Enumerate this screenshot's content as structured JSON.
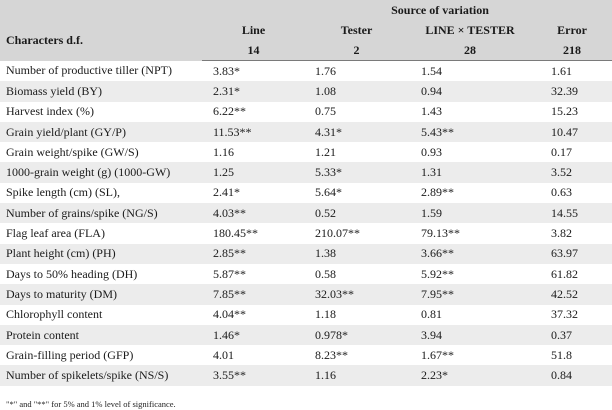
{
  "header": {
    "source_of_variation": "Source of variation",
    "characters_df": "Characters d.f.",
    "columns": [
      {
        "label": "Line",
        "df": "14"
      },
      {
        "label": "Tester",
        "df": "2"
      },
      {
        "label": "LINE × TESTER",
        "df": "28"
      },
      {
        "label": "Error",
        "df": "218"
      }
    ]
  },
  "rows": [
    {
      "name": "Number of productive tiller (NPT)",
      "values": [
        "3.83*",
        "1.76",
        "1.54",
        "1.61"
      ]
    },
    {
      "name": "Biomass yield (BY)",
      "values": [
        "2.31*",
        "1.08",
        "0.94",
        "32.39"
      ]
    },
    {
      "name": "Harvest index (%)",
      "values": [
        "6.22**",
        "0.75",
        "1.43",
        "15.23"
      ]
    },
    {
      "name": "Grain yield/plant (GY/P)",
      "values": [
        "11.53**",
        "4.31*",
        "5.43**",
        "10.47"
      ]
    },
    {
      "name": "Grain weight/spike (GW/S)",
      "values": [
        "1.16",
        "1.21",
        "0.93",
        "0.17"
      ]
    },
    {
      "name": "1000-grain weight (g) (1000-GW)",
      "values": [
        "1.25",
        "5.33*",
        "1.31",
        "3.52"
      ]
    },
    {
      "name": "Spike length (cm) (SL),",
      "values": [
        "2.41*",
        "5.64*",
        "2.89**",
        "0.63"
      ]
    },
    {
      "name": "Number of grains/spike (NG/S)",
      "values": [
        "4.03**",
        "0.52",
        "1.59",
        "14.55"
      ]
    },
    {
      "name": "Flag leaf area (FLA)",
      "values": [
        "180.45**",
        "210.07**",
        "79.13**",
        "3.82"
      ]
    },
    {
      "name": "Plant height (cm) (PH)",
      "values": [
        "2.85**",
        "1.38",
        "3.66**",
        "63.97"
      ]
    },
    {
      "name": "Days to 50% heading (DH)",
      "values": [
        "5.87**",
        "0.58",
        "5.92**",
        "61.82"
      ]
    },
    {
      "name": "Days to maturity (DM)",
      "values": [
        "7.85**",
        "32.03**",
        "7.95**",
        "42.52"
      ]
    },
    {
      "name": "Chlorophyll content",
      "values": [
        "4.04**",
        "1.18",
        "0.81",
        "37.32"
      ]
    },
    {
      "name": "Protein content",
      "values": [
        "1.46*",
        "0.978*",
        "3.94",
        "0.37"
      ]
    },
    {
      "name": "Grain-filling period (GFP)",
      "values": [
        "4.01",
        "8.23**",
        "1.67**",
        "51.8"
      ]
    },
    {
      "name": "Number of spikelets/spike (NS/S)",
      "values": [
        "3.55**",
        "1.16",
        "2.23*",
        "0.84"
      ]
    }
  ],
  "footnote": "\"*\" and \"**\" for 5% and 1% level of significance."
}
